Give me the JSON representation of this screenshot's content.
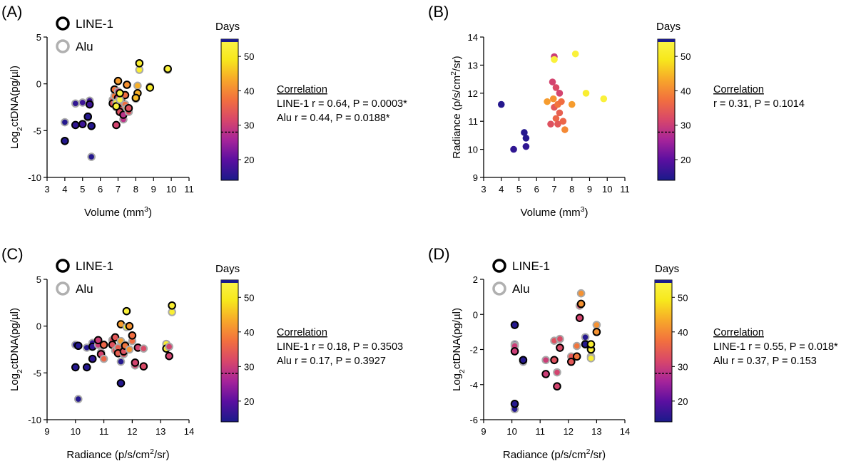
{
  "colorbar": {
    "label": "Days",
    "ticks": [
      20,
      30,
      40,
      50
    ],
    "range": [
      14,
      55
    ],
    "stops": [
      "#1a1a8a",
      "#5a0fa0",
      "#a6249a",
      "#d8476a",
      "#f2703e",
      "#f7a82a",
      "#f7e81c",
      "#fbf54a"
    ]
  },
  "chart_data": [
    {
      "panel": "(A)",
      "type": "scatter",
      "xlabel": "Volume (mm³)",
      "ylabel": "Log₂ctDNA(pg/µl)",
      "xlim": [
        3,
        11
      ],
      "ylim": [
        -10,
        5
      ],
      "xticks": [
        3,
        4,
        5,
        6,
        7,
        8,
        9,
        10,
        11
      ],
      "yticks": [
        -10,
        -5,
        0,
        5
      ],
      "legend": [
        {
          "name": "LINE-1",
          "color": "#000000"
        },
        {
          "name": "Alu",
          "color": "#b0b0b0"
        }
      ],
      "correlation": {
        "title": "Correlation",
        "lines": [
          "LINE-1 r = 0.64, P = 0.0003*",
          "Alu r = 0.44, P = 0.0188*"
        ]
      },
      "colorbar_marker": 28,
      "points": [
        {
          "x": 4.0,
          "l": -6.1,
          "a": -4.1,
          "d": 15
        },
        {
          "x": 4.6,
          "l": -4.4,
          "a": -2.1,
          "d": 16
        },
        {
          "x": 5.0,
          "l": -4.3,
          "a": -2.0,
          "d": 17
        },
        {
          "x": 5.3,
          "l": -3.5,
          "a": -3.6,
          "d": 15
        },
        {
          "x": 5.4,
          "l": -2.2,
          "a": -1.8,
          "d": 17
        },
        {
          "x": 5.5,
          "l": -4.5,
          "a": -7.8,
          "d": 15
        },
        {
          "x": 6.7,
          "l": -2.1,
          "a": -1.7,
          "d": 34
        },
        {
          "x": 6.8,
          "l": -0.6,
          "a": -1.3,
          "d": 38
        },
        {
          "x": 6.9,
          "l": -4.4,
          "a": -2.5,
          "d": 31
        },
        {
          "x": 7.0,
          "l": -1.5,
          "a": -0.8,
          "d": 30
        },
        {
          "x": 7.0,
          "l": 0.3,
          "a": -2.0,
          "d": 42
        },
        {
          "x": 7.1,
          "l": -3.0,
          "a": -2.6,
          "d": 33
        },
        {
          "x": 7.2,
          "l": -2.0,
          "a": -1.7,
          "d": 36
        },
        {
          "x": 7.3,
          "l": -3.3,
          "a": -3.8,
          "d": 28
        },
        {
          "x": 7.4,
          "l": -1.2,
          "a": -2.2,
          "d": 37
        },
        {
          "x": 7.5,
          "l": -0.1,
          "a": -2.6,
          "d": 41
        },
        {
          "x": 7.6,
          "l": -2.6,
          "a": -3.0,
          "d": 33
        },
        {
          "x": 6.9,
          "l": -2.4,
          "a": -2.0,
          "d": 53
        },
        {
          "x": 7.1,
          "l": -1.0,
          "a": -1.7,
          "d": 54
        },
        {
          "x": 8.2,
          "l": 2.2,
          "a": 1.5,
          "d": 52
        },
        {
          "x": 8.1,
          "l": -1.0,
          "a": -0.2,
          "d": 44
        },
        {
          "x": 8.0,
          "l": -1.5,
          "a": -1.6,
          "d": 45
        },
        {
          "x": 8.8,
          "l": -0.4,
          "a": -0.3,
          "d": 51
        },
        {
          "x": 9.8,
          "l": 1.6,
          "a": 1.5,
          "d": 53
        }
      ]
    },
    {
      "panel": "(B)",
      "type": "scatter",
      "xlabel": "Volume (mm³)",
      "ylabel": "Radiance (p/s/cm²/sr)",
      "xlim": [
        3,
        11
      ],
      "ylim": [
        9,
        14
      ],
      "xticks": [
        3,
        4,
        5,
        6,
        7,
        8,
        9,
        10,
        11
      ],
      "yticks": [
        9,
        10,
        11,
        12,
        13,
        14
      ],
      "correlation": {
        "title": "Correlation",
        "lines": [
          "r = 0.31, P = 0.1014"
        ]
      },
      "colorbar_marker": 28,
      "points": [
        {
          "x": 4.0,
          "y": 11.6,
          "d": 15
        },
        {
          "x": 4.7,
          "y": 10.0,
          "d": 16
        },
        {
          "x": 5.3,
          "y": 10.6,
          "d": 15
        },
        {
          "x": 5.4,
          "y": 10.4,
          "d": 15
        },
        {
          "x": 5.4,
          "y": 10.1,
          "d": 16
        },
        {
          "x": 6.6,
          "y": 11.7,
          "d": 42
        },
        {
          "x": 6.8,
          "y": 10.9,
          "d": 33
        },
        {
          "x": 6.9,
          "y": 12.4,
          "d": 31
        },
        {
          "x": 6.95,
          "y": 11.8,
          "d": 41
        },
        {
          "x": 7.0,
          "y": 13.3,
          "d": 30
        },
        {
          "x": 7.0,
          "y": 13.2,
          "d": 53
        },
        {
          "x": 7.0,
          "y": 11.5,
          "d": 34
        },
        {
          "x": 7.1,
          "y": 11.1,
          "d": 36
        },
        {
          "x": 7.1,
          "y": 12.2,
          "d": 32
        },
        {
          "x": 7.2,
          "y": 11.6,
          "d": 38
        },
        {
          "x": 7.2,
          "y": 10.9,
          "d": 34
        },
        {
          "x": 7.3,
          "y": 11.3,
          "d": 35
        },
        {
          "x": 7.4,
          "y": 11.7,
          "d": 37
        },
        {
          "x": 7.5,
          "y": 11.0,
          "d": 36
        },
        {
          "x": 7.6,
          "y": 10.7,
          "d": 40
        },
        {
          "x": 7.3,
          "y": 12.0,
          "d": 31
        },
        {
          "x": 8.0,
          "y": 11.6,
          "d": 42
        },
        {
          "x": 8.2,
          "y": 13.4,
          "d": 53
        },
        {
          "x": 8.8,
          "y": 12.0,
          "d": 52
        },
        {
          "x": 9.8,
          "y": 11.8,
          "d": 53
        }
      ]
    },
    {
      "panel": "(C)",
      "type": "scatter",
      "xlabel": "Radiance (p/s/cm²/sr)",
      "ylabel": "Log₂ctDNA(pg/µl)",
      "xlim": [
        9,
        14
      ],
      "ylim": [
        -10,
        5
      ],
      "xticks": [
        9,
        10,
        11,
        12,
        13,
        14
      ],
      "yticks": [
        -10,
        -5,
        0,
        5
      ],
      "legend": [
        {
          "name": "LINE-1",
          "color": "#000000"
        },
        {
          "name": "Alu",
          "color": "#b0b0b0"
        }
      ],
      "correlation": {
        "title": "Correlation",
        "lines": [
          "LINE-1 r = 0.18, P = 0.3503",
          "Alu r = 0.17, P = 0.3927"
        ]
      },
      "colorbar_marker": 28,
      "points": [
        {
          "x": 10.0,
          "l": -4.4,
          "a": -2.0,
          "d": 15
        },
        {
          "x": 10.1,
          "l": -2.1,
          "a": -7.8,
          "d": 15
        },
        {
          "x": 10.4,
          "l": -4.4,
          "a": -2.3,
          "d": 15
        },
        {
          "x": 10.6,
          "l": -3.5,
          "a": -3.5,
          "d": 16
        },
        {
          "x": 10.6,
          "l": -2.2,
          "a": -1.8,
          "d": 16
        },
        {
          "x": 10.8,
          "l": -1.5,
          "a": -2.0,
          "d": 30
        },
        {
          "x": 10.9,
          "l": -3.0,
          "a": -2.8,
          "d": 31
        },
        {
          "x": 11.0,
          "l": -2.0,
          "a": -3.5,
          "d": 36
        },
        {
          "x": 11.3,
          "l": -2.0,
          "a": -1.5,
          "d": 33
        },
        {
          "x": 11.4,
          "l": -1.2,
          "a": -2.6,
          "d": 34
        },
        {
          "x": 11.5,
          "l": -2.9,
          "a": -2.3,
          "d": 35
        },
        {
          "x": 11.6,
          "l": 0.2,
          "a": -1.6,
          "d": 42
        },
        {
          "x": 11.6,
          "l": -6.1,
          "a": -3.8,
          "d": 15
        },
        {
          "x": 11.7,
          "l": -2.7,
          "a": -3.0,
          "d": 33
        },
        {
          "x": 11.75,
          "l": -2.1,
          "a": -2.0,
          "d": 38
        },
        {
          "x": 11.8,
          "l": 1.6,
          "a": -0.1,
          "d": 53
        },
        {
          "x": 11.9,
          "l": 0.0,
          "a": -2.5,
          "d": 41
        },
        {
          "x": 12.0,
          "l": -1.0,
          "a": -1.6,
          "d": 37
        },
        {
          "x": 12.1,
          "l": -3.9,
          "a": -4.2,
          "d": 31
        },
        {
          "x": 12.2,
          "l": -2.3,
          "a": -2.3,
          "d": 31
        },
        {
          "x": 12.4,
          "l": -4.3,
          "a": -2.4,
          "d": 32
        },
        {
          "x": 13.2,
          "l": -2.4,
          "a": -1.9,
          "d": 52
        },
        {
          "x": 13.3,
          "l": -3.2,
          "a": -2.2,
          "d": 31
        },
        {
          "x": 13.4,
          "l": 2.2,
          "a": 1.5,
          "d": 52
        }
      ]
    },
    {
      "panel": "(D)",
      "type": "scatter",
      "xlabel": "Radiance (p/s/cm²/sr)",
      "ylabel": "Log₂ctDNA(pg/µl)",
      "xlim": [
        9,
        14
      ],
      "ylim": [
        -6,
        2
      ],
      "xticks": [
        9,
        10,
        11,
        12,
        13,
        14
      ],
      "yticks": [
        -6,
        -4,
        -2,
        0,
        2
      ],
      "legend": [
        {
          "name": "LINE-1",
          "color": "#000000"
        },
        {
          "name": "Alu",
          "color": "#b0b0b0"
        }
      ],
      "correlation": {
        "title": "Correlation",
        "lines": [
          "LINE-1 r = 0.55, P = 0.018*",
          "Alu r = 0.37, P = 0.153"
        ]
      },
      "colorbar_marker": 28,
      "points": [
        {
          "x": 10.1,
          "l": -0.6,
          "a": -1.7,
          "d": 15
        },
        {
          "x": 10.1,
          "l": -2.1,
          "a": -1.8,
          "d": 30
        },
        {
          "x": 10.1,
          "l": -5.1,
          "a": -5.4,
          "d": 15
        },
        {
          "x": 10.4,
          "l": -2.6,
          "a": -2.7,
          "d": 15
        },
        {
          "x": 11.2,
          "l": -3.4,
          "a": -2.6,
          "d": 30
        },
        {
          "x": 11.5,
          "l": -2.6,
          "a": -1.5,
          "d": 33
        },
        {
          "x": 11.6,
          "l": -4.1,
          "a": -3.3,
          "d": 31
        },
        {
          "x": 11.7,
          "l": -1.9,
          "a": -1.4,
          "d": 32
        },
        {
          "x": 12.1,
          "l": -2.7,
          "a": -2.4,
          "d": 34
        },
        {
          "x": 12.3,
          "l": -2.4,
          "a": -1.8,
          "d": 38
        },
        {
          "x": 12.4,
          "l": -0.2,
          "a": 0.5,
          "d": 31
        },
        {
          "x": 12.45,
          "l": 0.6,
          "a": 1.2,
          "d": 41
        },
        {
          "x": 12.6,
          "l": -1.7,
          "a": -1.3,
          "d": 15
        },
        {
          "x": 12.8,
          "l": -2.0,
          "a": -2.4,
          "d": 53
        },
        {
          "x": 12.8,
          "l": -1.7,
          "a": -2.5,
          "d": 52
        },
        {
          "x": 13.0,
          "l": -1.0,
          "a": -0.6,
          "d": 41
        }
      ]
    }
  ]
}
